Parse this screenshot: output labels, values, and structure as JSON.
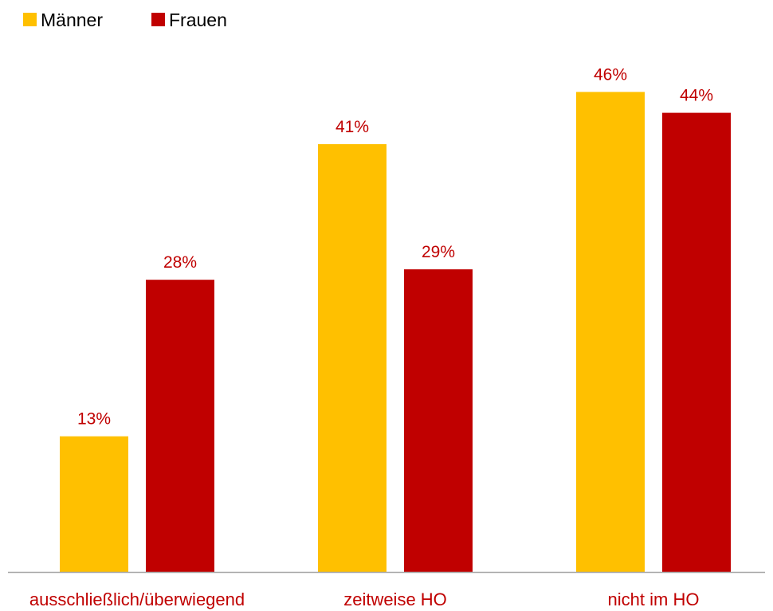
{
  "chart_data": {
    "type": "bar",
    "categories": [
      "ausschließlich/überwiegend",
      "zeitweise HO",
      "nicht im HO"
    ],
    "series": [
      {
        "name": "Männer",
        "values": [
          13,
          41,
          46
        ],
        "labels": [
          "13%",
          "41%",
          "46%"
        ],
        "color": "#FFC000"
      },
      {
        "name": "Frauen",
        "values": [
          28,
          29,
          44
        ],
        "labels": [
          "28%",
          "29%",
          "44%"
        ],
        "color": "#C00000"
      }
    ],
    "unit": "%",
    "ylim": [
      0,
      50
    ],
    "legend_position": "top-left",
    "grid": false,
    "label_color": "#C00000",
    "axis_color": "#A6A6A6"
  }
}
